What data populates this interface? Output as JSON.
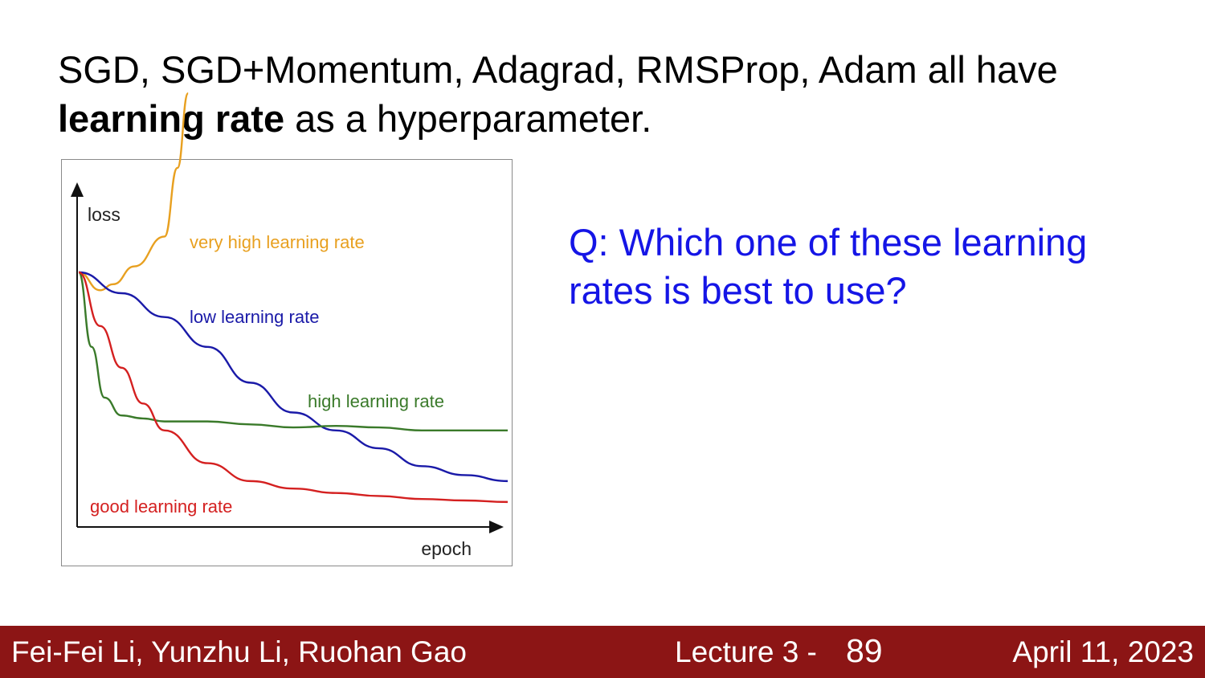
{
  "slide": {
    "title_plain": "SGD, SGD+Momentum, Adagrad, RMSProp, Adam all have",
    "title_bold": "learning rate",
    "title_rest": " as a hyperparameter.",
    "question": "Q: Which one of these learning rates is best to use?"
  },
  "footer": {
    "authors": "Fei-Fei Li, Yunzhu Li, Ruohan Gao",
    "lecture": "Lecture 3 -",
    "page": "89",
    "date": "April 11, 2023"
  },
  "chart_data": {
    "type": "line",
    "xlabel": "epoch",
    "ylabel": "loss",
    "grid": false,
    "x": [
      0,
      1,
      2,
      3,
      4,
      5,
      6,
      7,
      8,
      9,
      10
    ],
    "series": [
      {
        "name": "very high learning rate",
        "color": "#e8a020",
        "x": [
          0,
          0.5,
          0.8,
          1.3,
          2.0,
          2.3,
          2.55
        ],
        "values": [
          0.8,
          0.74,
          0.76,
          0.82,
          0.92,
          1.15,
          1.4
        ]
      },
      {
        "name": "low learning rate",
        "color": "#1a1aa8",
        "x": [
          0,
          1,
          2,
          3,
          4,
          5,
          6,
          7,
          8,
          9,
          10
        ],
        "values": [
          0.8,
          0.73,
          0.65,
          0.55,
          0.43,
          0.33,
          0.27,
          0.21,
          0.15,
          0.12,
          0.1
        ]
      },
      {
        "name": "high learning rate",
        "color": "#3a7a2a",
        "x": [
          0,
          0.3,
          0.6,
          1.0,
          1.5,
          2,
          3,
          4,
          5,
          6,
          7,
          8,
          9,
          10
        ],
        "values": [
          0.8,
          0.55,
          0.38,
          0.32,
          0.31,
          0.3,
          0.3,
          0.29,
          0.28,
          0.285,
          0.28,
          0.27,
          0.27,
          0.27
        ]
      },
      {
        "name": "good learning rate",
        "color": "#d42020",
        "x": [
          0,
          0.5,
          1,
          1.5,
          2,
          3,
          4,
          5,
          6,
          7,
          8,
          9,
          10
        ],
        "values": [
          0.8,
          0.62,
          0.48,
          0.36,
          0.27,
          0.16,
          0.1,
          0.075,
          0.06,
          0.05,
          0.04,
          0.035,
          0.03
        ]
      }
    ]
  }
}
